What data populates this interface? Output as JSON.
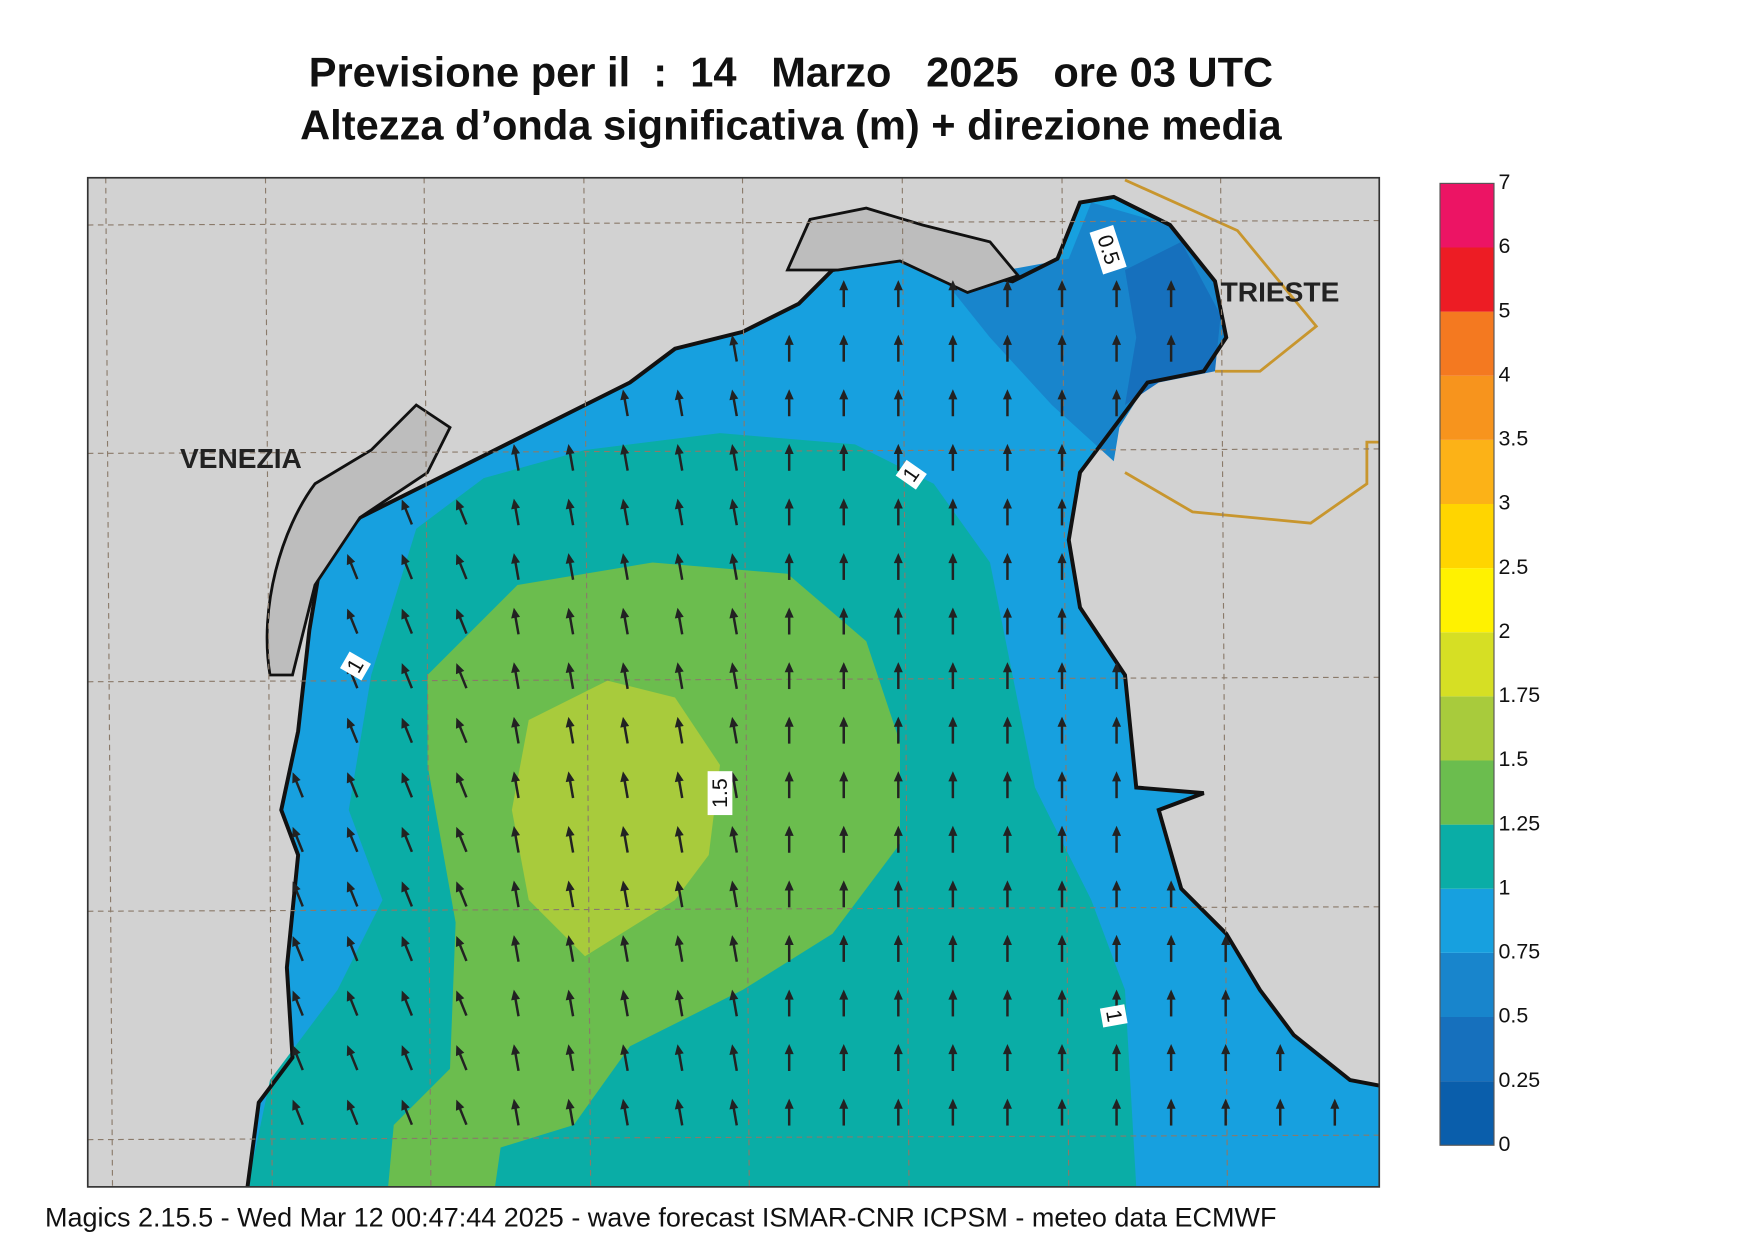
{
  "header": {
    "title": "Previsione per il  :  14   Marzo   2025   ore 03 UTC",
    "subtitle": "Altezza d’onda significativa (m) + direzione media"
  },
  "map": {
    "cities": [
      "VENEZIA",
      "TRIESTE"
    ],
    "contour_labels": [
      "0.5",
      "1",
      "1",
      "1.5",
      "1"
    ]
  },
  "legend": {
    "levels": [
      0,
      0.25,
      0.5,
      0.75,
      1,
      1.25,
      1.5,
      1.75,
      2,
      2.5,
      3,
      3.5,
      4,
      5,
      6,
      7
    ],
    "colors": [
      "#0a5eab",
      "#1670bd",
      "#1885cc",
      "#17a0df",
      "#0aada6",
      "#6bbd4e",
      "#a8cb3c",
      "#d6df24",
      "#fff200",
      "#ffd500",
      "#fcb217",
      "#f7941d",
      "#f47920",
      "#ed1c24",
      "#ec1464"
    ]
  },
  "footer": "Magics 2.15.5 - Wed Mar 12 00:47:44 2025 - wave forecast  ISMAR-CNR  ICPSM - meteo data   ECMWF"
}
